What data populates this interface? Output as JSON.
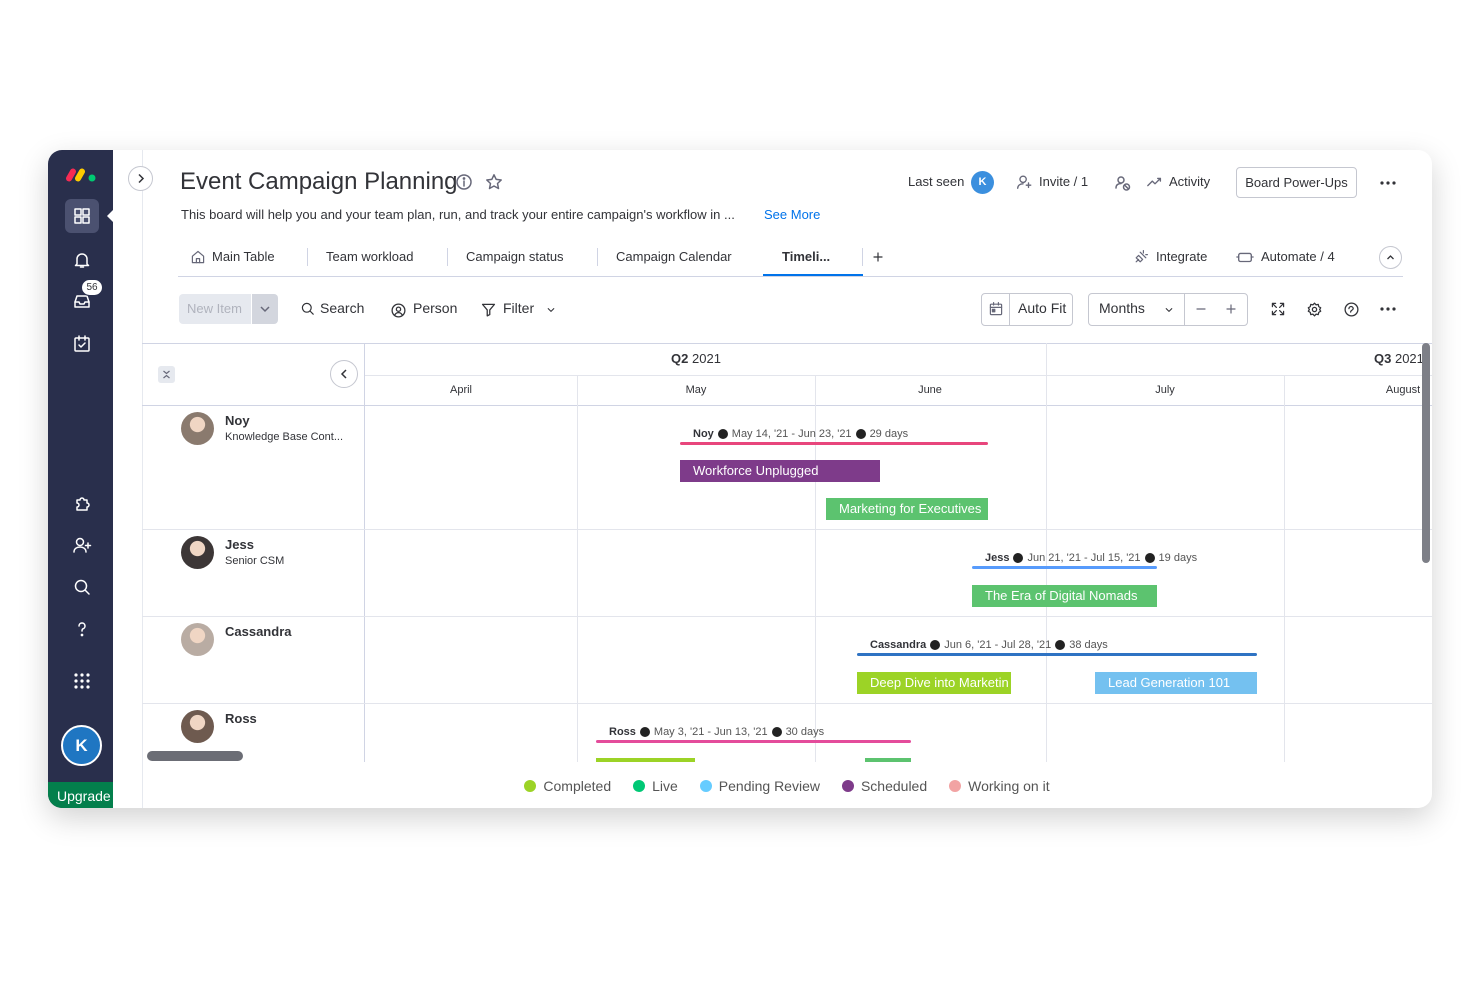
{
  "sidebar": {
    "notifications_badge": "56",
    "avatar": "K",
    "upgrade": "Upgrade"
  },
  "header": {
    "title": "Event Campaign Planning",
    "description": "This board will help you and your team plan, run, and track your entire campaign's workflow in ...",
    "see_more": "See More",
    "last_seen": "Last seen",
    "last_seen_avatar": "K",
    "invite": "Invite / 1",
    "activity": "Activity",
    "power_ups": "Board Power-Ups"
  },
  "tabs": [
    "Main Table",
    "Team workload",
    "Campaign status",
    "Campaign Calendar",
    "Timeli..."
  ],
  "integrations": {
    "integrate": "Integrate",
    "automate": "Automate / 4"
  },
  "toolbar": {
    "new_item": "New Item",
    "search": "Search",
    "person": "Person",
    "filter": "Filter",
    "auto_fit": "Auto Fit",
    "zoom": "Months"
  },
  "timeline": {
    "quarters": [
      {
        "quarter": "Q2",
        "year": "2021"
      },
      {
        "quarter": "Q3",
        "year": "2021"
      }
    ],
    "months": [
      "April",
      "May",
      "June",
      "July",
      "August"
    ],
    "rows": [
      {
        "name": "Noy",
        "role": "Knowledge Base Cont...",
        "summary": {
          "name": "Noy",
          "dates": "May 14, '21 - Jun 23, '21",
          "duration": "29 days",
          "color": "#e8467c"
        },
        "items": [
          {
            "label": "Workforce Unplugged",
            "color": "#7e3b8a"
          },
          {
            "label": "Marketing for Executives",
            "color": "#5cc36f"
          }
        ]
      },
      {
        "name": "Jess",
        "role": "Senior CSM",
        "summary": {
          "name": "Jess",
          "dates": "Jun 21, '21 - Jul 15, '21",
          "duration": "19 days",
          "color": "#579bfc"
        },
        "items": [
          {
            "label": "The Era of Digital Nomads",
            "color": "#5cc36f"
          }
        ]
      },
      {
        "name": "Cassandra",
        "summary": {
          "name": "Cassandra",
          "dates": "Jun 6, '21 - Jul 28, '21",
          "duration": "38 days",
          "color": "#2f73c3"
        },
        "items": [
          {
            "label": "Deep Dive into Marketin",
            "color": "#9cd326"
          },
          {
            "label": "Lead Generation 101",
            "color": "#74c1f0"
          }
        ]
      },
      {
        "name": "Ross",
        "summary": {
          "name": "Ross",
          "dates": "May 3, '21 - Jun 13, '21",
          "duration": "30 days",
          "color": "#e44c9b"
        },
        "items": []
      }
    ]
  },
  "legend": [
    {
      "label": "Completed",
      "color": "#9cd326"
    },
    {
      "label": "Live",
      "color": "#00c875"
    },
    {
      "label": "Pending Review",
      "color": "#66ccff"
    },
    {
      "label": "Scheduled",
      "color": "#7e3b8a"
    },
    {
      "label": "Working on it",
      "color": "#f2a3a3"
    }
  ]
}
